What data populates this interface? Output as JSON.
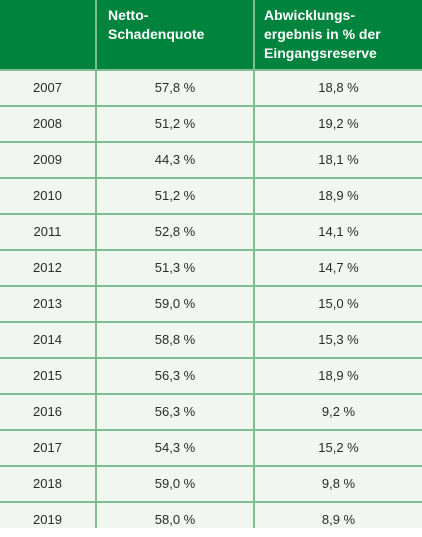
{
  "table": {
    "headers": [
      "",
      "Netto-\nSchadenquote",
      "Abwicklungs-\nergebnis in % der\nEingangsreserve"
    ],
    "rows": [
      [
        "2007",
        "57,8 %",
        "18,8 %"
      ],
      [
        "2008",
        "51,2 %",
        "19,2 %"
      ],
      [
        "2009",
        "44,3 %",
        "18,1 %"
      ],
      [
        "2010",
        "51,2 %",
        "18,9 %"
      ],
      [
        "2011",
        "52,8 %",
        "14,1 %"
      ],
      [
        "2012",
        "51,3 %",
        "14,7 %"
      ],
      [
        "2013",
        "59,0 %",
        "15,0 %"
      ],
      [
        "2014",
        "58,8 %",
        "15,3 %"
      ],
      [
        "2015",
        "56,3 %",
        "18,9 %"
      ],
      [
        "2016",
        "56,3 %",
        "9,2 %"
      ],
      [
        "2017",
        "54,3 %",
        "15,2 %"
      ],
      [
        "2018",
        "59,0 %",
        "9,8 %"
      ],
      [
        "2019",
        "58,0 %",
        "8,9 %"
      ]
    ]
  },
  "colors": {
    "header_background": "#00843d",
    "header_text": "#ffffff",
    "row_background": "#f1f6f1",
    "grid_lines": "#7fbf8f"
  }
}
